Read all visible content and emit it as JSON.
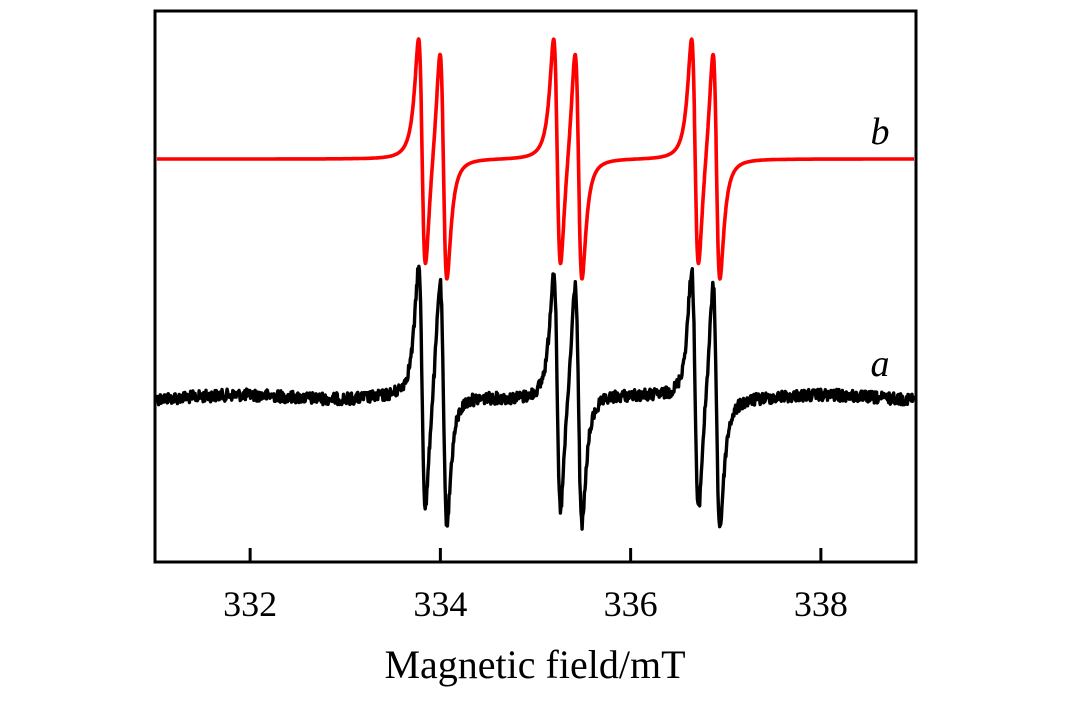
{
  "chart_data": {
    "type": "line",
    "title": "",
    "xlabel": "Magnetic field/mT",
    "ylabel": "",
    "xlim": [
      331,
      339
    ],
    "xticks": [
      332,
      334,
      336,
      338
    ],
    "y_ticks_visible": false,
    "grid": false,
    "legend": "none",
    "line_centers": [
      333.92,
      335.34,
      336.79
    ],
    "line_splitting": 0.225,
    "series": [
      {
        "label": "b",
        "kind": "simulated",
        "color": "#ff0000",
        "noisy": false,
        "stack_order": 2,
        "peak_to_peak_width": 0.11
      },
      {
        "label": "a",
        "kind": "experimental",
        "color": "#000000",
        "noisy": true,
        "stack_order": 1,
        "peak_to_peak_width": 0.11
      }
    ]
  }
}
